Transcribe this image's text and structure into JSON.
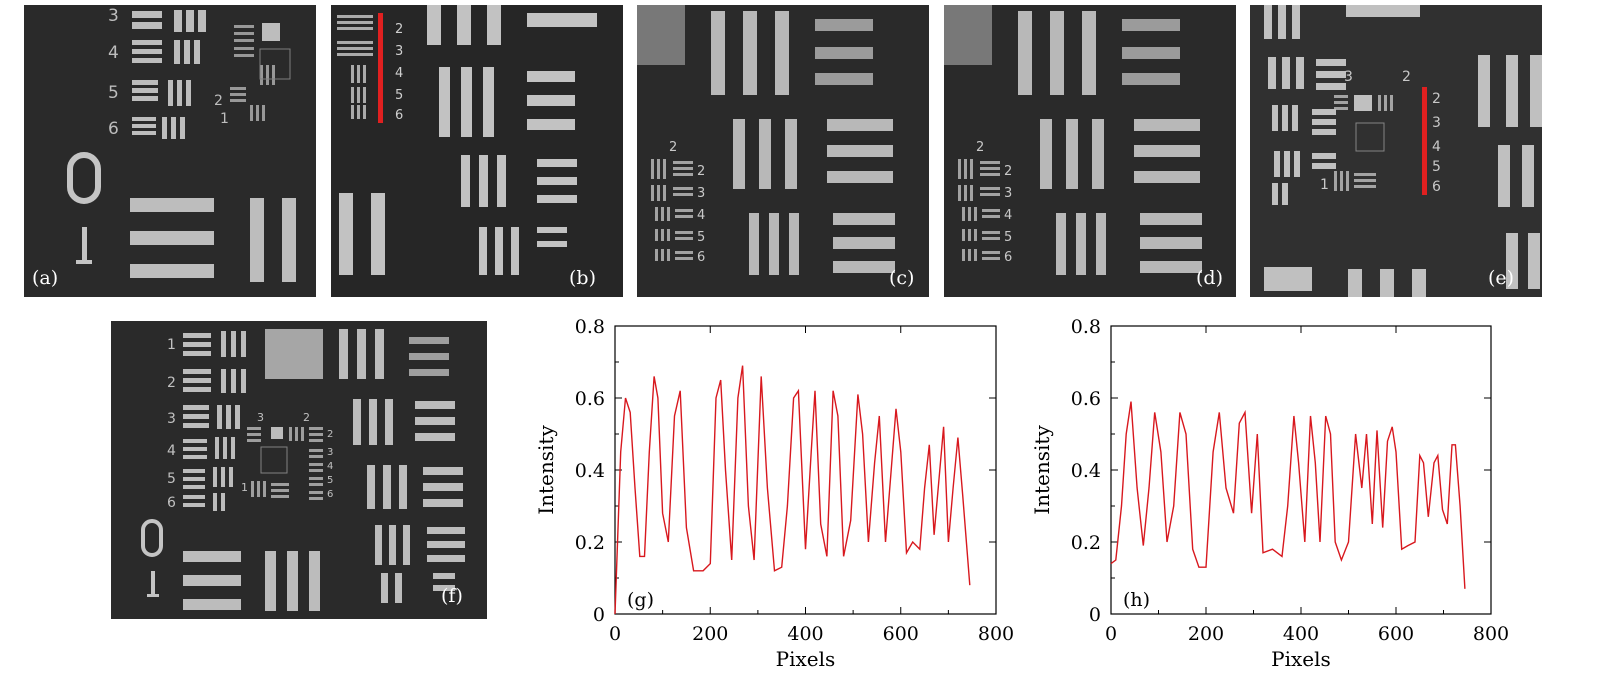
{
  "panels": [
    {
      "label": "(a)",
      "digits": [
        "3",
        "4",
        "5",
        "6",
        "2",
        "1"
      ]
    },
    {
      "label": "(b)",
      "digits": [
        "2",
        "3",
        "4",
        "5",
        "6"
      ]
    },
    {
      "label": "(c)",
      "digits": [
        "2",
        "2",
        "3",
        "4",
        "5",
        "6"
      ]
    },
    {
      "label": "(d)",
      "digits": [
        "2",
        "2",
        "3",
        "4",
        "5",
        "6"
      ]
    },
    {
      "label": "(e)",
      "digits": [
        "3",
        "2",
        "2",
        "3",
        "4",
        "5",
        "6",
        "1"
      ]
    },
    {
      "label": "(f)",
      "digits": [
        "1",
        "2",
        "3",
        "4",
        "5",
        "6",
        "3",
        "2",
        "2",
        "3",
        "4",
        "5",
        "6",
        "1"
      ]
    }
  ],
  "chart_data": [
    {
      "type": "line",
      "label": "(g)",
      "xlabel": "Pixels",
      "ylabel": "Intensity",
      "xlim": [
        0,
        800
      ],
      "ylim": [
        0,
        0.8
      ],
      "xticks": [
        "0",
        "200",
        "400",
        "600",
        "800"
      ],
      "yticks": [
        "0",
        "0.2",
        "0.4",
        "0.6",
        "0.8"
      ],
      "color": "#d8181e",
      "x": [
        0,
        12,
        22,
        32,
        42,
        52,
        62,
        72,
        82,
        90,
        100,
        112,
        125,
        137,
        150,
        165,
        185,
        200,
        212,
        222,
        232,
        245,
        258,
        268,
        280,
        292,
        307,
        320,
        335,
        350,
        362,
        375,
        385,
        400,
        412,
        420,
        432,
        445,
        458,
        468,
        480,
        495,
        510,
        520,
        532,
        545,
        555,
        568,
        580,
        590,
        600,
        612,
        625,
        640,
        650,
        660,
        670,
        682,
        690,
        700,
        710,
        720,
        730,
        745
      ],
      "y": [
        0.0,
        0.45,
        0.6,
        0.56,
        0.35,
        0.16,
        0.16,
        0.45,
        0.66,
        0.6,
        0.28,
        0.2,
        0.55,
        0.62,
        0.24,
        0.12,
        0.12,
        0.14,
        0.6,
        0.65,
        0.4,
        0.15,
        0.6,
        0.69,
        0.3,
        0.15,
        0.66,
        0.35,
        0.12,
        0.13,
        0.3,
        0.6,
        0.62,
        0.18,
        0.45,
        0.62,
        0.25,
        0.16,
        0.62,
        0.55,
        0.16,
        0.26,
        0.61,
        0.5,
        0.2,
        0.42,
        0.55,
        0.2,
        0.4,
        0.57,
        0.45,
        0.17,
        0.2,
        0.18,
        0.35,
        0.47,
        0.22,
        0.4,
        0.52,
        0.2,
        0.35,
        0.49,
        0.33,
        0.08
      ]
    },
    {
      "type": "line",
      "label": "(h)",
      "xlabel": "Pixels",
      "ylabel": "Intensity",
      "xlim": [
        0,
        800
      ],
      "ylim": [
        0,
        0.8
      ],
      "xticks": [
        "0",
        "200",
        "400",
        "600",
        "800"
      ],
      "yticks": [
        "0",
        "0.2",
        "0.4",
        "0.6",
        "0.8"
      ],
      "color": "#d8181e",
      "x": [
        0,
        10,
        22,
        32,
        42,
        55,
        68,
        80,
        92,
        105,
        118,
        132,
        145,
        158,
        172,
        185,
        200,
        215,
        228,
        242,
        258,
        270,
        282,
        296,
        308,
        320,
        340,
        360,
        372,
        385,
        395,
        408,
        420,
        430,
        440,
        452,
        462,
        472,
        485,
        500,
        515,
        528,
        538,
        550,
        560,
        572,
        582,
        592,
        600,
        612,
        625,
        640,
        650,
        658,
        668,
        680,
        688,
        698,
        708,
        718,
        725,
        735,
        745
      ],
      "y": [
        0.14,
        0.15,
        0.3,
        0.5,
        0.59,
        0.35,
        0.19,
        0.35,
        0.56,
        0.45,
        0.2,
        0.3,
        0.56,
        0.5,
        0.18,
        0.13,
        0.13,
        0.45,
        0.56,
        0.35,
        0.28,
        0.53,
        0.56,
        0.28,
        0.5,
        0.17,
        0.18,
        0.16,
        0.3,
        0.55,
        0.42,
        0.2,
        0.55,
        0.42,
        0.2,
        0.55,
        0.5,
        0.2,
        0.15,
        0.2,
        0.5,
        0.35,
        0.5,
        0.25,
        0.51,
        0.24,
        0.48,
        0.52,
        0.45,
        0.18,
        0.19,
        0.2,
        0.44,
        0.42,
        0.27,
        0.42,
        0.44,
        0.29,
        0.25,
        0.47,
        0.47,
        0.3,
        0.07
      ]
    }
  ]
}
